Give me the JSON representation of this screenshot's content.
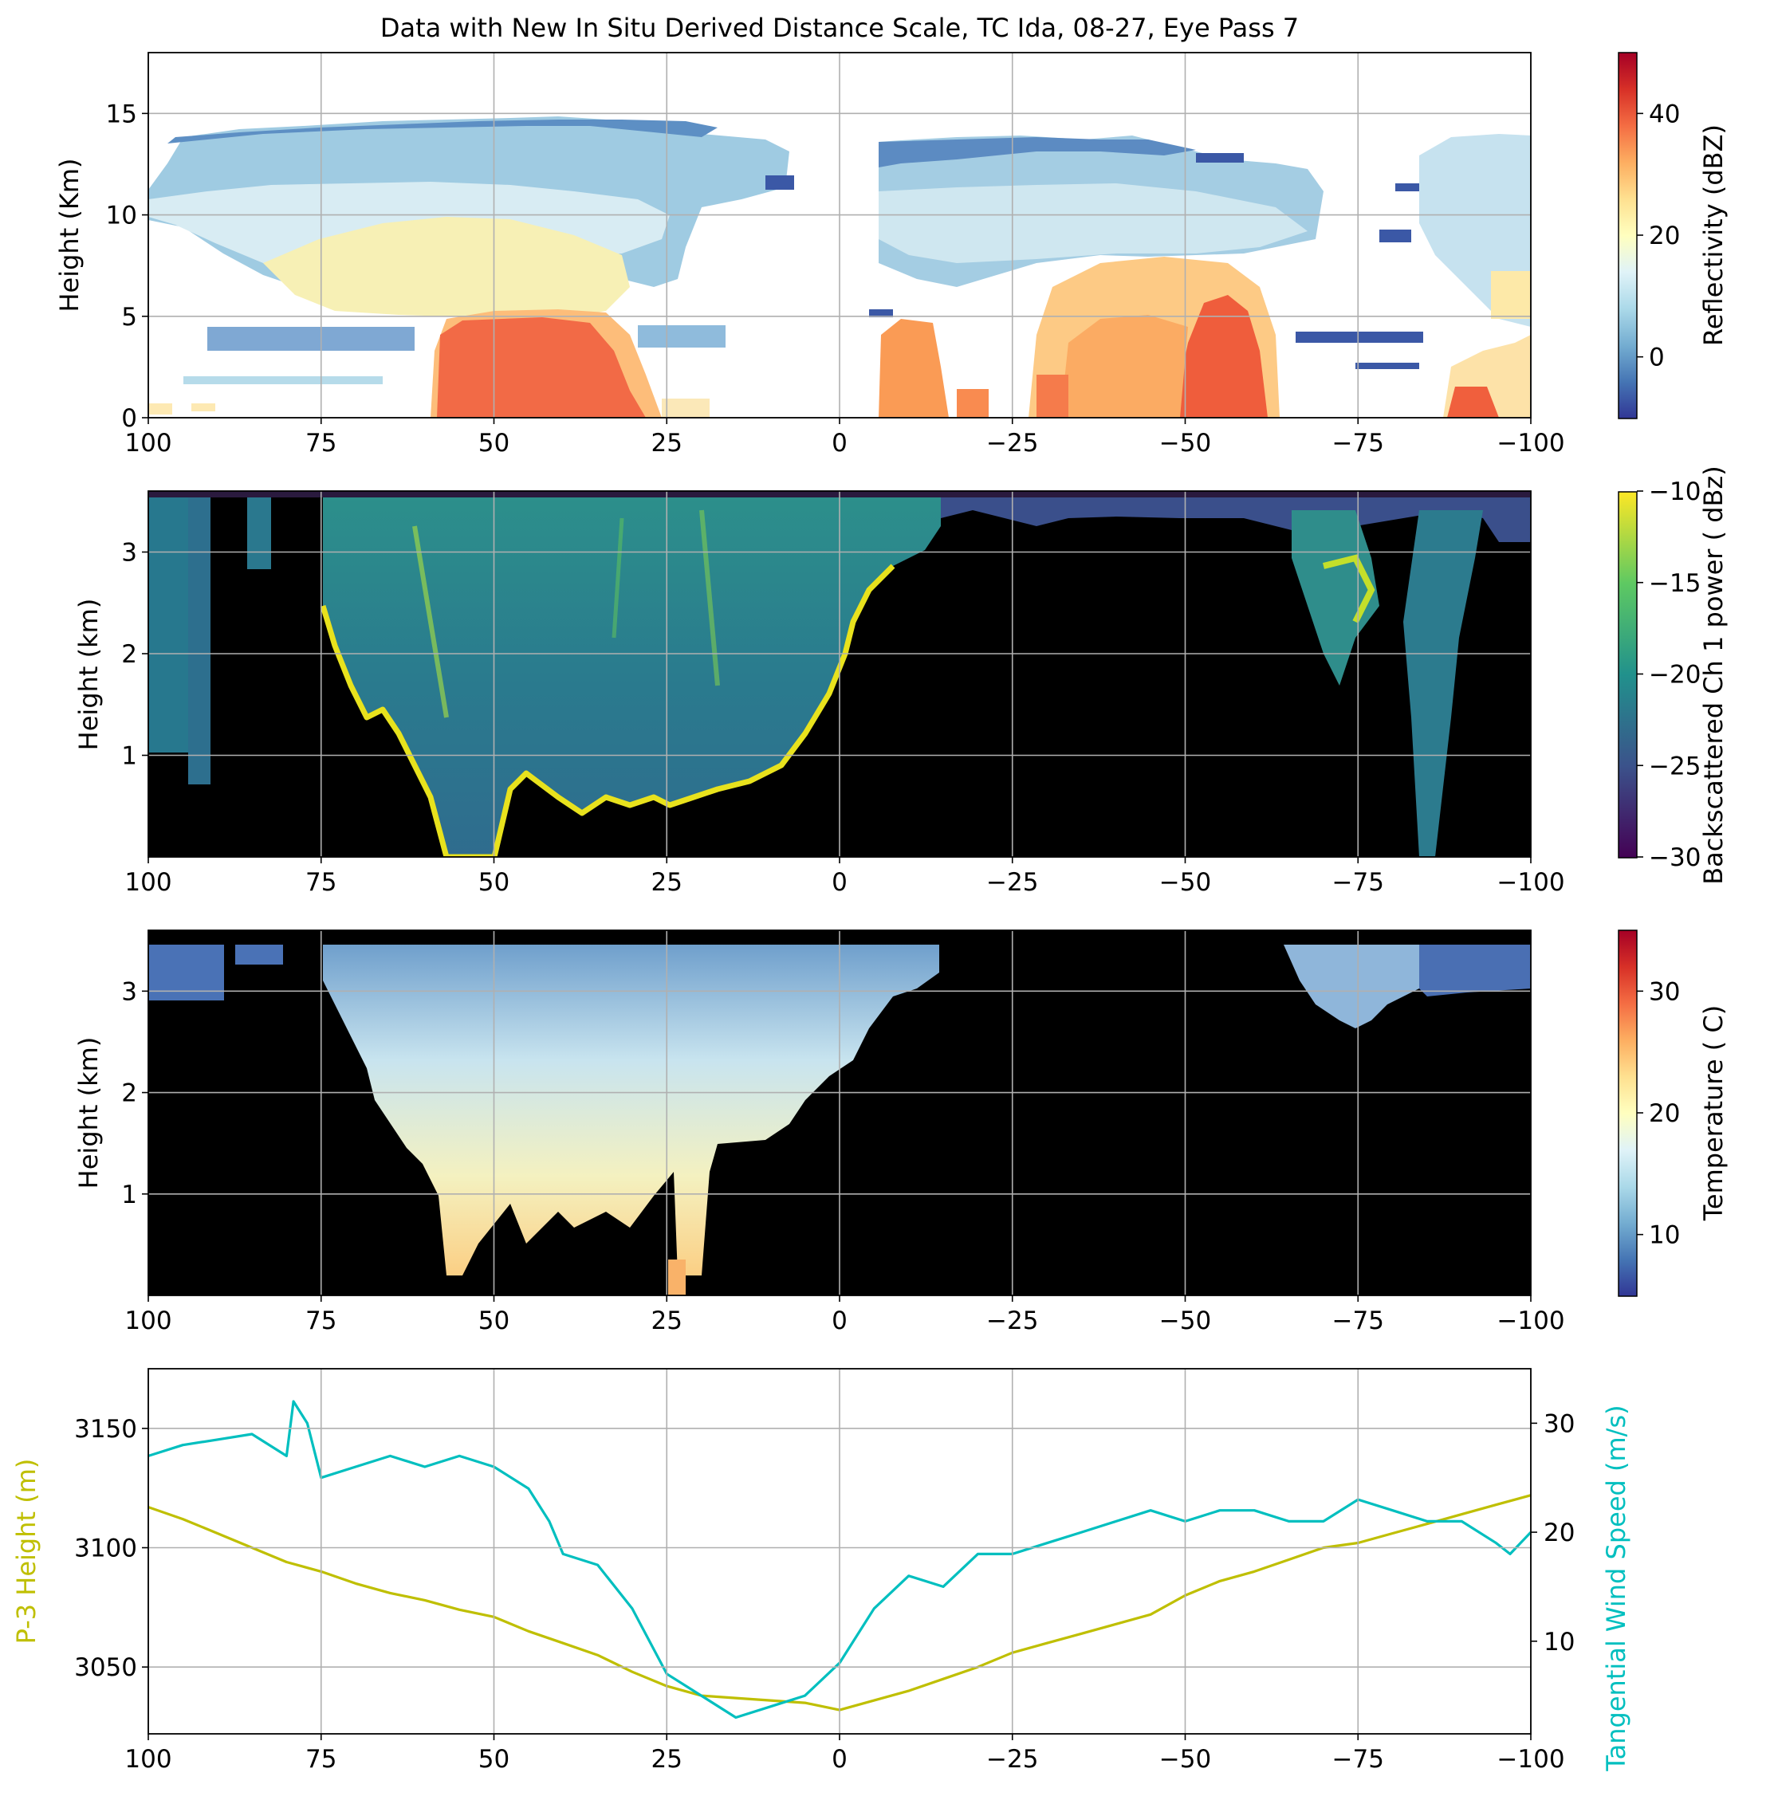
{
  "title": "Data with New In Situ Derived Distance Scale, TC Ida, 08-27, Eye Pass 7",
  "colors": {
    "p3_height": "#bfbf00",
    "tangential_wind": "#00bfbf",
    "grid": "#b0b0b0",
    "background_black": "#000000"
  },
  "chart_data": [
    {
      "type": "heatmap",
      "name": "reflectivity",
      "xlabel": "",
      "ylabel": "Height (Km)",
      "xlim": [
        100,
        -100
      ],
      "ylim": [
        0,
        18
      ],
      "xticks": [
        "100",
        "75",
        "50",
        "25",
        "0",
        "−25",
        "−50",
        "−75",
        "−100"
      ],
      "yticks": [
        "0",
        "5",
        "10",
        "15"
      ],
      "grid": true,
      "colorbar": {
        "label": "Reflectivity (dBZ)",
        "colormap": "RdYlBu_r",
        "range": [
          -10,
          50
        ],
        "ticks": [
          "0",
          "20",
          "40"
        ]
      },
      "structure": {
        "left_storm_cell": {
          "x_range": [
            58,
            27
          ],
          "core_height_km": [
            0,
            5
          ],
          "peak_dbz": 40
        },
        "right_storm_cell": {
          "x_range": [
            -30,
            -62
          ],
          "core_height_km": [
            0,
            5.5
          ],
          "peak_dbz": 42
        },
        "echo_top_km": 14.5,
        "eye_gap_x": [
          -5,
          5
        ]
      }
    },
    {
      "type": "heatmap",
      "name": "lidar_backscatter",
      "xlabel": "",
      "ylabel": "Height (km)",
      "xlim": [
        100,
        -100
      ],
      "ylim": [
        0,
        3.6
      ],
      "xticks": [
        "100",
        "75",
        "50",
        "25",
        "0",
        "−25",
        "−50",
        "−75",
        "−100"
      ],
      "yticks": [
        "1",
        "2",
        "3"
      ],
      "grid": true,
      "colorbar": {
        "label": "Backscattered Ch 1 power ( dBz)",
        "colormap": "viridis",
        "range": [
          -30,
          -10
        ],
        "ticks": [
          "−30",
          "−25",
          "−20",
          "−15",
          "−10"
        ]
      }
    },
    {
      "type": "heatmap",
      "name": "temperature",
      "xlabel": "",
      "ylabel": "Height (km)",
      "xlim": [
        100,
        -100
      ],
      "ylim": [
        0,
        3.6
      ],
      "xticks": [
        "100",
        "75",
        "50",
        "25",
        "0",
        "−25",
        "−50",
        "−75",
        "−100"
      ],
      "yticks": [
        "1",
        "2",
        "3"
      ],
      "grid": true,
      "colorbar": {
        "label": "Temperature ( C)",
        "colormap": "RdYlBu_r",
        "range": [
          5,
          35
        ],
        "ticks": [
          "10",
          "20",
          "30"
        ]
      }
    },
    {
      "type": "line",
      "name": "flight_level",
      "xlim": [
        100,
        -100
      ],
      "xticks": [
        "100",
        "75",
        "50",
        "25",
        "0",
        "−25",
        "−50",
        "−75",
        "−100"
      ],
      "grid": true,
      "left_axis": {
        "label": "P-3 Height (m)",
        "ylim": [
          3022,
          3175
        ],
        "ticks": [
          "3050",
          "3100",
          "3150"
        ]
      },
      "right_axis": {
        "label": "Tangential Wind Speed (m/s)",
        "ylim": [
          1.5,
          35
        ],
        "ticks": [
          "10",
          "20",
          "30"
        ]
      },
      "series": [
        {
          "name": "P-3 Height",
          "axis": "left",
          "x": [
            100,
            95,
            90,
            85,
            80,
            75,
            70,
            65,
            60,
            55,
            50,
            45,
            40,
            35,
            30,
            25,
            20,
            15,
            10,
            5,
            0,
            -5,
            -10,
            -15,
            -20,
            -25,
            -30,
            -35,
            -40,
            -45,
            -50,
            -55,
            -60,
            -65,
            -70,
            -75,
            -80,
            -85,
            -90,
            -95,
            -100
          ],
          "values": [
            3117,
            3112,
            3106,
            3100,
            3094,
            3090,
            3085,
            3081,
            3078,
            3074,
            3071,
            3065,
            3060,
            3055,
            3048,
            3042,
            3038,
            3037,
            3036,
            3035,
            3032,
            3036,
            3040,
            3045,
            3050,
            3056,
            3060,
            3064,
            3068,
            3072,
            3080,
            3086,
            3090,
            3095,
            3100,
            3102,
            3106,
            3110,
            3114,
            3118,
            3122
          ]
        },
        {
          "name": "Tangential Wind Speed",
          "axis": "right",
          "x": [
            100,
            95,
            90,
            85,
            80,
            79,
            77,
            75,
            70,
            65,
            60,
            55,
            50,
            45,
            42,
            40,
            35,
            30,
            25,
            20,
            15,
            10,
            5,
            0,
            -5,
            -10,
            -15,
            -20,
            -25,
            -30,
            -35,
            -40,
            -45,
            -50,
            -55,
            -60,
            -65,
            -70,
            -75,
            -80,
            -85,
            -90,
            -95,
            -97,
            -100
          ],
          "values": [
            27,
            28,
            28.5,
            29,
            27,
            32,
            30,
            25,
            26,
            27,
            26,
            27,
            26,
            24,
            21,
            18,
            17,
            13,
            7,
            5,
            3,
            4,
            5,
            8,
            13,
            16,
            15,
            18,
            18,
            19,
            20,
            21,
            22,
            21,
            22,
            22,
            21,
            21,
            23,
            22,
            21,
            21,
            19,
            18,
            20
          ]
        }
      ]
    }
  ]
}
